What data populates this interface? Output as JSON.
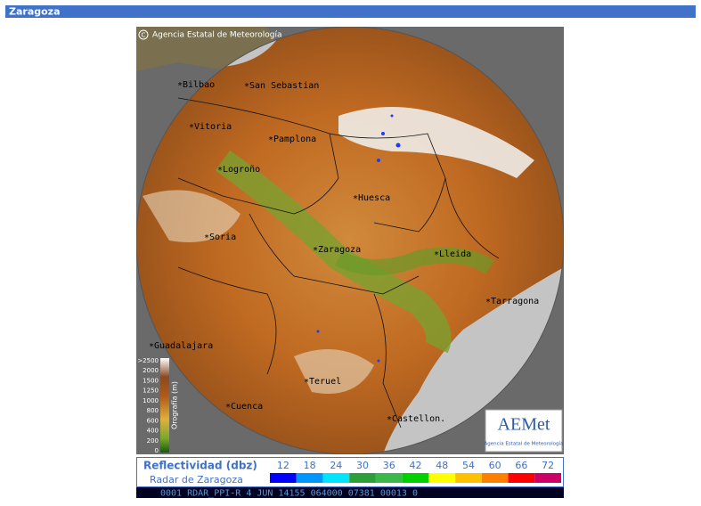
{
  "header": {
    "title": "Zaragoza"
  },
  "map": {
    "copyright": "Agencia Estatal de Meteorología",
    "cities": [
      "Bilbao",
      "San Sebastian",
      "Vitoria",
      "Pamplona",
      "Logroño",
      "Huesca",
      "Soria",
      "Zaragoza",
      "Lleida",
      "Tarragona",
      "Guadalajara",
      "Teruel",
      "Cuenca",
      "Castellon."
    ],
    "orography": {
      "title": "Orografía (m)",
      "labels": [
        ">2500",
        "2000",
        "1500",
        "1250",
        "1000",
        "800",
        "600",
        "400",
        "200",
        "0"
      ]
    },
    "logo": {
      "name": "AEMet",
      "subtitle": "Agencia Estatal de Meteorología"
    }
  },
  "legend": {
    "title": "Reflectividad (dbz)",
    "subtitle": "Radar de Zaragoza",
    "levels": [
      {
        "value": 12,
        "color": "#0000ff"
      },
      {
        "value": 18,
        "color": "#0096ff"
      },
      {
        "value": 24,
        "color": "#00e5ff"
      },
      {
        "value": 30,
        "color": "#2e9e3a"
      },
      {
        "value": 36,
        "color": "#3cb84a"
      },
      {
        "value": 42,
        "color": "#00d000"
      },
      {
        "value": 48,
        "color": "#ffff00"
      },
      {
        "value": 54,
        "color": "#ffc000"
      },
      {
        "value": 60,
        "color": "#ff8000"
      },
      {
        "value": 66,
        "color": "#ff0000"
      },
      {
        "value": 72,
        "color": "#cc0066"
      }
    ]
  },
  "status": {
    "text": "0001 RDAR_PPI-R    4 JUN 14155 064000 07381 00013 0"
  }
}
